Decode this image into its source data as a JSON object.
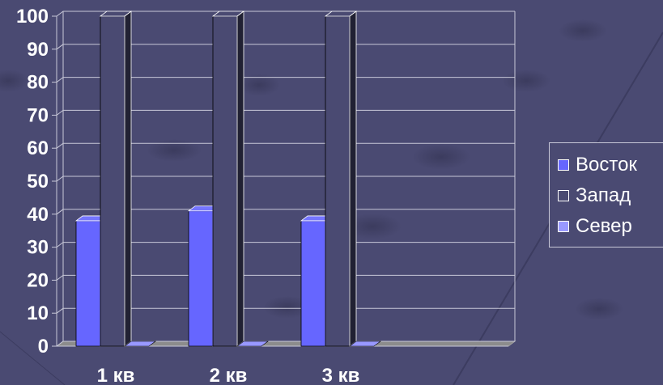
{
  "chart_data": {
    "type": "bar",
    "categories": [
      "1 кв",
      "2 кв",
      "3 кв"
    ],
    "series": [
      {
        "name": "Восток",
        "values": [
          38,
          41,
          38
        ],
        "color": "#6666ff"
      },
      {
        "name": "Запад",
        "values": [
          100,
          100,
          100
        ],
        "color": "#4a4a72"
      },
      {
        "name": "Север",
        "values": [
          0,
          0,
          0
        ],
        "color": "#9999ff"
      }
    ],
    "ylim": [
      0,
      100
    ],
    "yticks": [
      "0",
      "10",
      "20",
      "30",
      "40",
      "50",
      "60",
      "70",
      "80",
      "90",
      "100"
    ],
    "grid": true,
    "legend_position": "right"
  },
  "colors": {
    "background": "#4a4a72",
    "gridline": "#c8c8d8",
    "text": "#ffffff"
  }
}
